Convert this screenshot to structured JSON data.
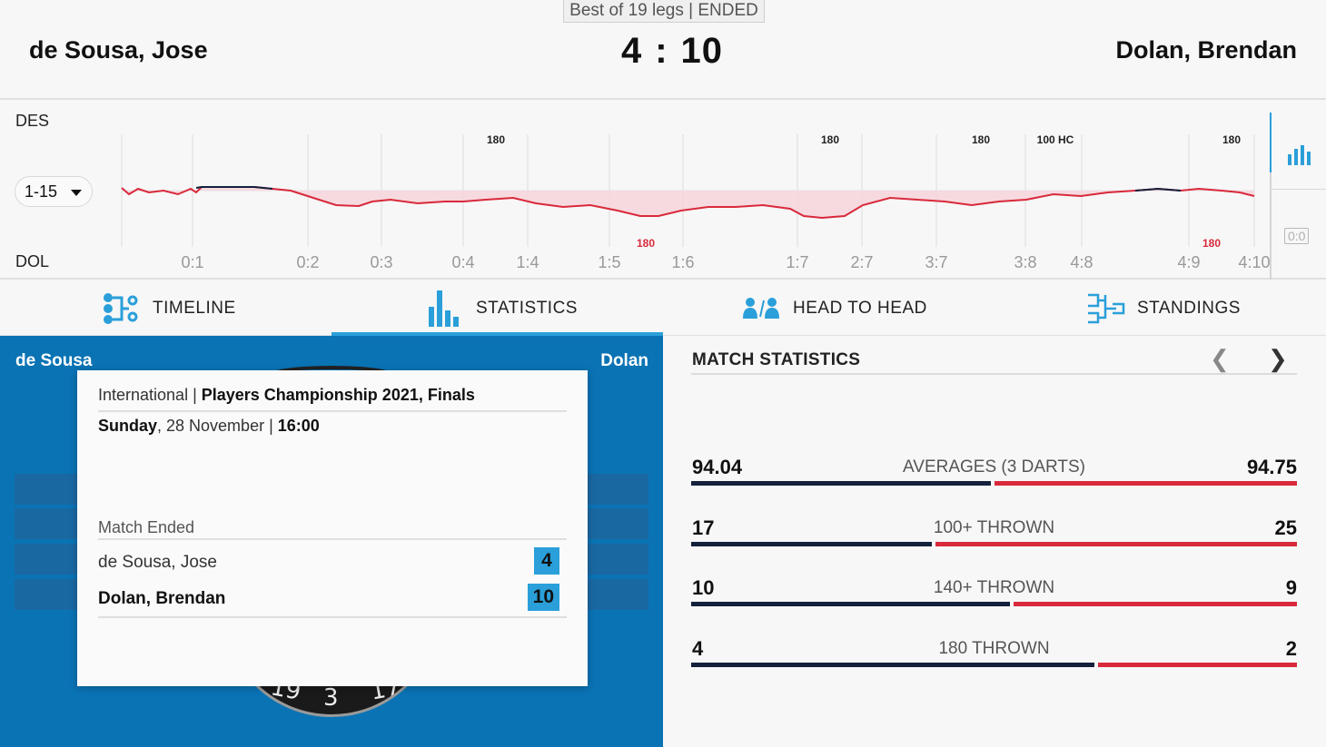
{
  "header": {
    "format": "Best of 19 legs | ENDED",
    "player1": "de Sousa, Jose",
    "player2": "Dolan, Brendan",
    "score1": "4",
    "score2": "10",
    "separator": ":"
  },
  "momentum": {
    "top_label": "DES",
    "bottom_label": "DOL",
    "range": "1-15",
    "leg_scores": [
      "0:1",
      "0:2",
      "0:3",
      "0:4",
      "1:4",
      "1:5",
      "1:6",
      "1:7",
      "2:7",
      "3:7",
      "3:8",
      "4:8",
      "4:9",
      "4:10"
    ],
    "markers_top": [
      "180",
      "180",
      "180",
      "100 HC",
      "180"
    ],
    "markers_bottom": [
      "180",
      "180"
    ],
    "reset_label": "0:0",
    "colors": {
      "line": "#d9293b",
      "fill": "#f6d5da",
      "lead_line": "#14213d"
    }
  },
  "tabs": [
    {
      "label": "TIMELINE",
      "icon": "timeline-icon"
    },
    {
      "label": "STATISTICS",
      "icon": "statistics-icon",
      "active": true
    },
    {
      "label": "HEAD TO HEAD",
      "icon": "head-to-head-icon"
    },
    {
      "label": "STANDINGS",
      "icon": "standings-icon"
    }
  ],
  "board": {
    "left_name": "de Sousa",
    "right_name": "Dolan",
    "numbers": [
      "19",
      "3",
      "17"
    ]
  },
  "card": {
    "category": "International | ",
    "competition": "Players Championship 2021, Finals",
    "day": "Sunday",
    "date": ", 28 November | ",
    "time": "16:00",
    "status": "Match Ended",
    "player1": "de Sousa, Jose",
    "player1_legs": "4",
    "player2": "Dolan, Brendan",
    "player2_legs": "10"
  },
  "stats": {
    "title": "MATCH STATISTICS",
    "rows": [
      {
        "label": "AVERAGES (3 DARTS)",
        "left": "94.04",
        "right": "94.75",
        "left_share": 0.498
      },
      {
        "label": "100+ THROWN",
        "left": "17",
        "right": "25",
        "left_share": 0.4
      },
      {
        "label": "140+ THROWN",
        "left": "10",
        "right": "9",
        "left_share": 0.53
      },
      {
        "label": "180 THROWN",
        "left": "4",
        "right": "2",
        "left_share": 0.67
      }
    ],
    "colors": {
      "left": "#14213d",
      "right": "#d9293b"
    }
  }
}
